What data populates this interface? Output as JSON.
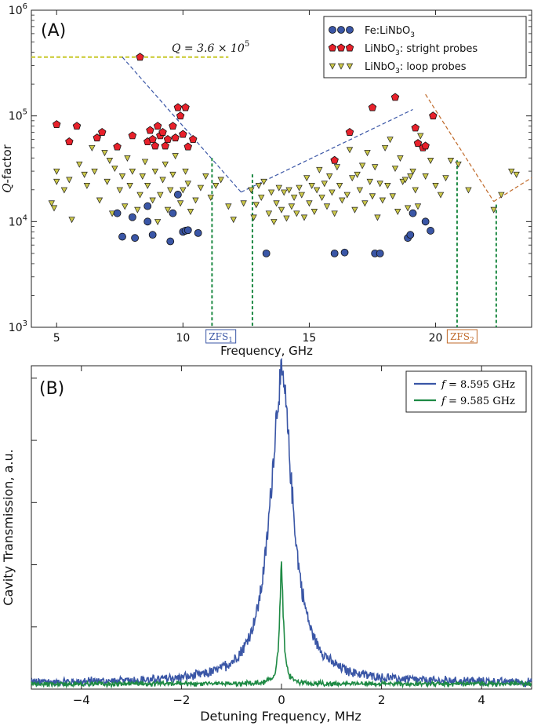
{
  "chart_data": [
    {
      "type": "scatter",
      "panel_label": "(A)",
      "xlabel": "Frequency, GHz",
      "ylabel_prefix": "Q",
      "ylabel_suffix": "-factor",
      "xlim": [
        4,
        23.8
      ],
      "ylim": [
        1000,
        1000000
      ],
      "yscale": "log",
      "x_ticks": [
        "5",
        "10",
        "15",
        "20"
      ],
      "y_ticks": [
        {
          "base": "10",
          "exp": "3",
          "value": 1000
        },
        {
          "base": "10",
          "exp": "4",
          "value": 10000
        },
        {
          "base": "10",
          "exp": "5",
          "value": 100000
        },
        {
          "base": "10",
          "exp": "6",
          "value": 1000000
        }
      ],
      "legend_position": "top-right",
      "series": [
        {
          "name_main": "Fe:LiNbO",
          "name_sub": "3",
          "name_rest": "",
          "marker": "circle",
          "color": "#3a56a6",
          "points": [
            [
              7.4,
              12000
            ],
            [
              7.6,
              7200
            ],
            [
              8.0,
              11000
            ],
            [
              8.1,
              7000
            ],
            [
              8.6,
              14000
            ],
            [
              8.6,
              10000
            ],
            [
              8.8,
              7500
            ],
            [
              9.5,
              6500
            ],
            [
              9.6,
              12000
            ],
            [
              9.8,
              18000
            ],
            [
              10.0,
              8000
            ],
            [
              10.1,
              8200
            ],
            [
              10.2,
              8300
            ],
            [
              10.6,
              7800
            ],
            [
              13.3,
              5000
            ],
            [
              16.0,
              5000
            ],
            [
              16.4,
              5100
            ],
            [
              17.6,
              5000
            ],
            [
              17.8,
              5000
            ],
            [
              18.9,
              7000
            ],
            [
              19.0,
              7500
            ],
            [
              19.1,
              12000
            ],
            [
              19.6,
              10000
            ],
            [
              19.8,
              8200
            ]
          ]
        },
        {
          "name_main": "LiNbO",
          "name_sub": "3",
          "name_rest": ": stright probes",
          "marker": "pentagon",
          "color": "#e8212b",
          "points": [
            [
              5.0,
              83000
            ],
            [
              5.5,
              57000
            ],
            [
              5.8,
              80000
            ],
            [
              6.6,
              62000
            ],
            [
              6.8,
              70000
            ],
            [
              7.4,
              51000
            ],
            [
              8.0,
              65000
            ],
            [
              8.3,
              360000
            ],
            [
              8.6,
              57000
            ],
            [
              8.7,
              73000
            ],
            [
              8.8,
              60000
            ],
            [
              8.9,
              52000
            ],
            [
              9.0,
              80000
            ],
            [
              9.1,
              65000
            ],
            [
              9.2,
              70000
            ],
            [
              9.3,
              52000
            ],
            [
              9.4,
              60000
            ],
            [
              9.6,
              80000
            ],
            [
              9.7,
              62000
            ],
            [
              9.8,
              120000
            ],
            [
              9.9,
              100000
            ],
            [
              10.0,
              67000
            ],
            [
              10.1,
              120000
            ],
            [
              10.2,
              51000
            ],
            [
              10.4,
              60000
            ],
            [
              16.0,
              38000
            ],
            [
              16.6,
              70000
            ],
            [
              17.5,
              120000
            ],
            [
              18.4,
              150000
            ],
            [
              19.2,
              77000
            ],
            [
              19.3,
              55000
            ],
            [
              19.5,
              50000
            ],
            [
              19.6,
              52000
            ],
            [
              19.9,
              100000
            ]
          ]
        },
        {
          "name_main": "LiNbO",
          "name_sub": "3",
          "name_rest": ": loop probes",
          "marker": "triangle-down",
          "color": "#ccc84a",
          "points": [
            [
              4.8,
              15000
            ],
            [
              4.9,
              13500
            ],
            [
              5.0,
              30000
            ],
            [
              5.0,
              24000
            ],
            [
              5.3,
              20000
            ],
            [
              5.5,
              25000
            ],
            [
              5.6,
              10500
            ],
            [
              5.9,
              35000
            ],
            [
              6.1,
              28000
            ],
            [
              6.2,
              22000
            ],
            [
              6.4,
              50000
            ],
            [
              6.5,
              30000
            ],
            [
              6.7,
              16000
            ],
            [
              6.9,
              45000
            ],
            [
              7.0,
              24000
            ],
            [
              7.1,
              38000
            ],
            [
              7.2,
              12000
            ],
            [
              7.3,
              32000
            ],
            [
              7.5,
              20000
            ],
            [
              7.6,
              27000
            ],
            [
              7.7,
              14000
            ],
            [
              7.8,
              40000
            ],
            [
              7.9,
              22000
            ],
            [
              8.0,
              30000
            ],
            [
              8.2,
              13000
            ],
            [
              8.3,
              18000
            ],
            [
              8.4,
              27000
            ],
            [
              8.5,
              37000
            ],
            [
              8.6,
              22000
            ],
            [
              8.8,
              16000
            ],
            [
              8.9,
              30000
            ],
            [
              9.0,
              10000
            ],
            [
              9.1,
              18000
            ],
            [
              9.2,
              25000
            ],
            [
              9.3,
              35000
            ],
            [
              9.4,
              13000
            ],
            [
              9.5,
              20000
            ],
            [
              9.6,
              28000
            ],
            [
              9.7,
              42000
            ],
            [
              9.9,
              15000
            ],
            [
              10.0,
              20000
            ],
            [
              10.1,
              30000
            ],
            [
              10.2,
              23000
            ],
            [
              10.3,
              12500
            ],
            [
              10.5,
              16000
            ],
            [
              10.7,
              21000
            ],
            [
              10.9,
              27000
            ],
            [
              11.1,
              17000
            ],
            [
              11.3,
              22000
            ],
            [
              11.5,
              25000
            ],
            [
              11.8,
              14000
            ],
            [
              12.0,
              10500
            ],
            [
              12.4,
              15000
            ],
            [
              12.7,
              20000
            ],
            [
              12.8,
              11000
            ],
            [
              12.9,
              14500
            ],
            [
              13.0,
              22000
            ],
            [
              13.1,
              17000
            ],
            [
              13.2,
              24000
            ],
            [
              13.4,
              12000
            ],
            [
              13.5,
              19000
            ],
            [
              13.6,
              10000
            ],
            [
              13.7,
              15000
            ],
            [
              13.8,
              21000
            ],
            [
              13.9,
              13000
            ],
            [
              14.0,
              19000
            ],
            [
              14.1,
              10800
            ],
            [
              14.2,
              20000
            ],
            [
              14.3,
              14000
            ],
            [
              14.4,
              17000
            ],
            [
              14.5,
              12000
            ],
            [
              14.6,
              21000
            ],
            [
              14.7,
              18000
            ],
            [
              14.8,
              11000
            ],
            [
              14.9,
              26000
            ],
            [
              15.0,
              15000
            ],
            [
              15.1,
              22000
            ],
            [
              15.2,
              12500
            ],
            [
              15.3,
              20000
            ],
            [
              15.4,
              31000
            ],
            [
              15.5,
              17000
            ],
            [
              15.6,
              23000
            ],
            [
              15.7,
              14000
            ],
            [
              15.8,
              27000
            ],
            [
              15.9,
              19000
            ],
            [
              16.0,
              12000
            ],
            [
              16.1,
              33000
            ],
            [
              16.2,
              22000
            ],
            [
              16.3,
              16000
            ],
            [
              16.5,
              18000
            ],
            [
              16.6,
              48000
            ],
            [
              16.7,
              26000
            ],
            [
              16.8,
              13000
            ],
            [
              16.9,
              28000
            ],
            [
              17.0,
              20000
            ],
            [
              17.1,
              34000
            ],
            [
              17.2,
              15000
            ],
            [
              17.3,
              45000
            ],
            [
              17.4,
              24000
            ],
            [
              17.5,
              17500
            ],
            [
              17.6,
              33000
            ],
            [
              17.7,
              11000
            ],
            [
              17.8,
              23000
            ],
            [
              17.9,
              16000
            ],
            [
              18.0,
              50000
            ],
            [
              18.1,
              22000
            ],
            [
              18.2,
              60000
            ],
            [
              18.3,
              17500
            ],
            [
              18.4,
              32000
            ],
            [
              18.5,
              12500
            ],
            [
              18.6,
              40000
            ],
            [
              18.7,
              24000
            ],
            [
              18.8,
              25000
            ],
            [
              18.9,
              13500
            ],
            [
              19.0,
              27000
            ],
            [
              19.1,
              30000
            ],
            [
              19.2,
              20000
            ],
            [
              19.3,
              14000
            ],
            [
              19.4,
              65000
            ],
            [
              19.5,
              50000
            ],
            [
              19.6,
              27000
            ],
            [
              19.8,
              38000
            ],
            [
              20.0,
              22000
            ],
            [
              20.2,
              18000
            ],
            [
              20.4,
              26000
            ],
            [
              20.6,
              38000
            ],
            [
              20.9,
              35000
            ],
            [
              21.3,
              20000
            ],
            [
              22.3,
              13000
            ],
            [
              22.6,
              18000
            ],
            [
              23.0,
              30000
            ],
            [
              23.2,
              28000
            ]
          ]
        }
      ],
      "annotation_prefix": "Q = 3.6 × 10",
      "annotation_exp": "5",
      "reference_lines": [
        {
          "style": "horizontal",
          "color": "#c8c82a",
          "points": [
            [
              4.0,
              360000
            ],
            [
              11.8,
              360000
            ]
          ]
        },
        {
          "style": "fit",
          "color": "#3a56a6",
          "points": [
            [
              7.6,
              360000
            ],
            [
              12.3,
              19000
            ]
          ]
        },
        {
          "style": "fit",
          "color": "#3a56a6",
          "points": [
            [
              12.3,
              19000
            ],
            [
              19.1,
              115000
            ]
          ]
        },
        {
          "style": "fit",
          "color": "#c06a2a",
          "points": [
            [
              19.6,
              160000
            ],
            [
              22.3,
              15500
            ]
          ]
        },
        {
          "style": "fit",
          "color": "#c06a2a",
          "points": [
            [
              22.3,
              15500
            ],
            [
              23.8,
              26000
            ]
          ]
        }
      ],
      "vertical_markers": [
        {
          "x": 11.15,
          "top": 40000
        },
        {
          "x": 12.75,
          "top": 28000
        },
        {
          "x": 20.85,
          "top": 38000
        },
        {
          "x": 22.4,
          "top": 14500
        }
      ],
      "zfs_labels": [
        {
          "base": "ZFS",
          "sub": "1",
          "x": 11.5,
          "color": "#3a56a6"
        },
        {
          "base": "ZFS",
          "sub": "2",
          "x": 21.05,
          "color": "#c06a2a"
        }
      ]
    },
    {
      "type": "line",
      "panel_label": "(B)",
      "xlabel": "Detuning Frequency, MHz",
      "ylabel": "Cavity Transmission, a.u.",
      "xlim": [
        -5,
        5
      ],
      "ylim": [
        0,
        1.05
      ],
      "x_ticks": [
        -4,
        -2,
        0,
        2,
        4
      ],
      "x_tick_labels": [
        "−4",
        "−2",
        "0",
        "2",
        "4"
      ],
      "legend_position": "top-right",
      "series": [
        {
          "name_prefix": "f",
          "name_value": " = 8.595 GHz",
          "color": "#3a56a6",
          "peak": 1.0,
          "baseline": 0.015,
          "width_mhz": 0.55,
          "noise": 0.045
        },
        {
          "name_prefix": "f",
          "name_value": " = 9.585 GHz",
          "color": "#1e8a44",
          "peak": 0.38,
          "baseline": 0.012,
          "width_mhz": 0.09,
          "noise": 0.018
        }
      ]
    }
  ]
}
